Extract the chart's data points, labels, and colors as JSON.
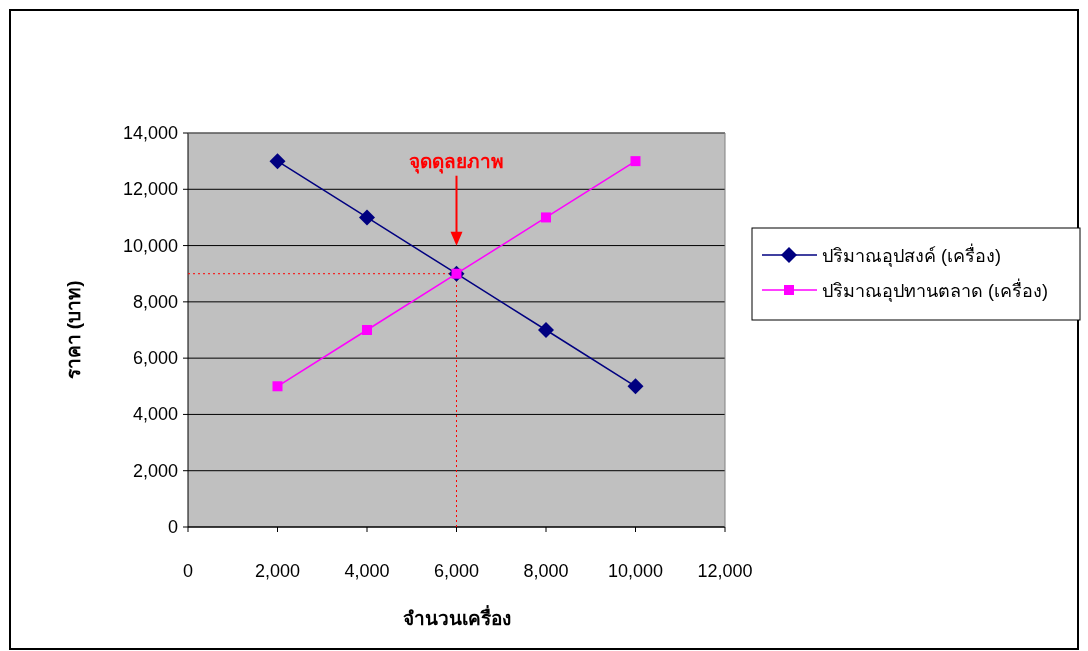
{
  "chart_data": {
    "type": "line",
    "xlabel": "จำนวนเครื่อง",
    "ylabel": "ราคา (บาท)",
    "xlim": [
      0,
      12000
    ],
    "ylim": [
      0,
      14000
    ],
    "xticks": [
      0,
      {
        "value": 2000,
        "label": "2,000"
      },
      {
        "value": 4000,
        "label": "4,000"
      },
      {
        "value": 6000,
        "label": "6,000"
      },
      {
        "value": 8000,
        "label": "8,000"
      },
      {
        "value": 10000,
        "label": "10,000"
      },
      {
        "value": 12000,
        "label": "12,000"
      }
    ],
    "yticks": [
      0,
      {
        "value": 2000,
        "label": "2,000"
      },
      {
        "value": 4000,
        "label": "4,000"
      },
      {
        "value": 6000,
        "label": "6,000"
      },
      {
        "value": 8000,
        "label": "8,000"
      },
      {
        "value": 10000,
        "label": "10,000"
      },
      {
        "value": 12000,
        "label": "12,000"
      },
      {
        "value": 14000,
        "label": "14,000"
      }
    ],
    "x": [
      2000,
      4000,
      6000,
      8000,
      10000
    ],
    "series": [
      {
        "name": "ปริมาณอุปสงค์ (เครื่อง)",
        "color": "#000080",
        "marker": "diamond",
        "values": [
          13000,
          11000,
          9000,
          7000,
          5000
        ]
      },
      {
        "name": "ปริมาณอุปทานตลาด (เครื่อง)",
        "color": "#ff00ff",
        "marker": "square",
        "values": [
          5000,
          7000,
          9000,
          11000,
          13000
        ]
      }
    ],
    "ref_lines": [
      {
        "axis": "x",
        "value": 6000,
        "color": "#ff0000",
        "line_style": "dotted"
      },
      {
        "axis": "y",
        "value": 9000,
        "color": "#ff0000",
        "line_style": "dotted"
      }
    ],
    "annotations": [
      "จุดดุลยภาพ"
    ],
    "grid": "y",
    "legend": "right",
    "line_style": "solid"
  }
}
